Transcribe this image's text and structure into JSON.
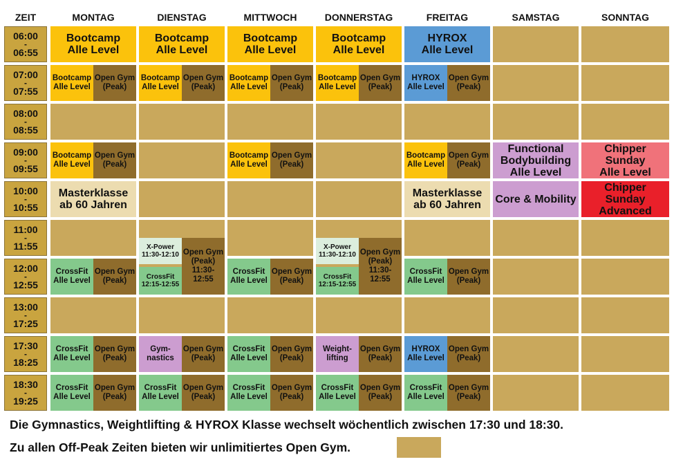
{
  "days": [
    "ZEIT",
    "MONTAG",
    "DIENSTAG",
    "MITTWOCH",
    "DONNERSTAG",
    "FREITAG",
    "SAMSTAG",
    "SONNTAG"
  ],
  "slots": [
    {
      "start": "06:00",
      "end": "06:55"
    },
    {
      "start": "07:00",
      "end": "07:55"
    },
    {
      "start": "08:00",
      "end": "08:55"
    },
    {
      "start": "09:00",
      "end": "09:55"
    },
    {
      "start": "10:00",
      "end": "10:55"
    },
    {
      "start": "11:00",
      "end": "11:55"
    },
    {
      "start": "12:00",
      "end": "12:55"
    },
    {
      "start": "13:00",
      "end": "17:25"
    },
    {
      "start": "17:30",
      "end": "18:25"
    },
    {
      "start": "18:30",
      "end": "19:25"
    }
  ],
  "dash": "-",
  "classes": {
    "bootcamp_alle": [
      "Bootcamp",
      "Alle Level"
    ],
    "hyrox_alle": [
      "HYROX",
      "Alle Level"
    ],
    "open_gym": [
      "Open Gym",
      "(Peak)"
    ],
    "crossfit_alle": [
      "CrossFit",
      "Alle Level"
    ],
    "masterklasse": [
      "Masterklasse",
      "ab 60 Jahren"
    ],
    "functional": [
      "Functional",
      "Bodybuilding",
      "Alle Level"
    ],
    "chipper_alle": [
      "Chipper",
      "Sunday",
      "Alle Level"
    ],
    "chipper_adv": [
      "Chipper",
      "Sunday",
      "Advanced"
    ],
    "core": [
      "Core & Mobility"
    ],
    "xpower": [
      "X-Power",
      "11:30-12:10"
    ],
    "crossfit_noon": [
      "CrossFit",
      "12:15-12:55"
    ],
    "open_gym_noon": [
      "Open Gym",
      "(Peak)",
      "11:30-12:55"
    ],
    "gymnastics": [
      "Gym-",
      "nastics"
    ],
    "weightlifting": [
      "Weight-",
      "lifting"
    ]
  },
  "footer": {
    "line1": "Die Gymnastics, Weightlifting & HYROX Klasse wechselt wöchentlich zwischen 17:30 und 18:30.",
    "line2": "Zu allen Off-Peak Zeiten bieten wir unlimitiertes Open Gym."
  },
  "colors": {
    "off_peak": "#c9a85c",
    "bootcamp": "#fbc20c",
    "open_gym": "#8f6c2c",
    "hyrox": "#5b9bd5",
    "crossfit": "#84c98c",
    "masterklasse": "#ecdcb0",
    "functional": "#cc9dd0",
    "chipper_alle": "#f0727a",
    "chipper_adv": "#e9202a",
    "xpower": "#dceedd",
    "gym_weight": "#cc9dd0"
  }
}
